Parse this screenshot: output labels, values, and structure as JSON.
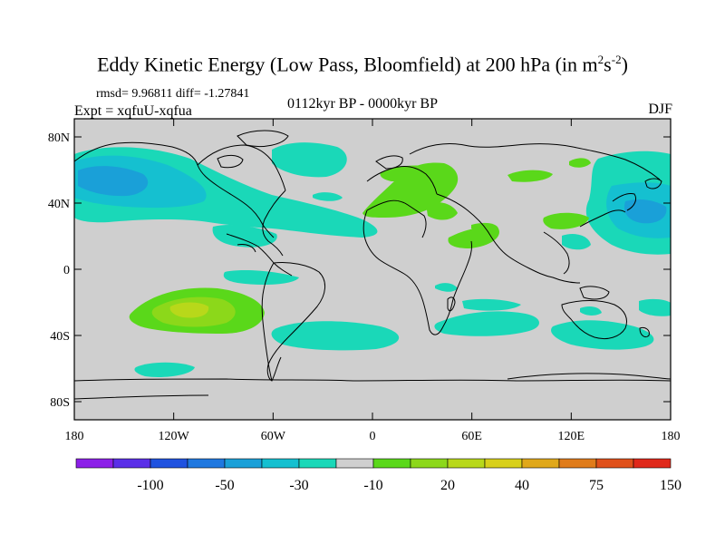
{
  "title": {
    "main": "Eddy Kinetic Energy (Low Pass, Bloomfield) at 200 hPa (in m",
    "sup1": "2",
    "mid": "s",
    "sup2": "-2",
    "end": ")"
  },
  "stats": {
    "rmsd_text": "rmsd= 9.96811  diff= -1.27841"
  },
  "experiment": "Expt = xqfuU-xqfua",
  "period": "0112kyr BP - 0000kyr BP",
  "season": "DJF",
  "axes": {
    "lat_labels": [
      "80N",
      "40N",
      "0",
      "40S",
      "80S"
    ],
    "lon_labels": [
      "180",
      "120W",
      "60W",
      "0",
      "60E",
      "120E",
      "180"
    ]
  },
  "colorbar": {
    "colors": [
      "#8c1fe8",
      "#5a2ee8",
      "#1f52e0",
      "#1f78e0",
      "#1aa0d8",
      "#15c0d0",
      "#1ad8b8",
      "#cfcfcf",
      "#5ad81a",
      "#8cd81a",
      "#b8d81a",
      "#d8d01a",
      "#e0a81a",
      "#e07c1a",
      "#e0501a",
      "#e0281a"
    ],
    "labels": [
      "-100",
      "-50",
      "-30",
      "-10",
      "20",
      "40",
      "75",
      "150"
    ]
  },
  "map": {
    "background": "#cfcfcf",
    "blue_light": "#1ad8b8",
    "blue_mid": "#15c0d0",
    "blue_dark": "#1aa0d8",
    "green": "#5ad81a",
    "green_light": "#8cd81a",
    "yellow": "#b8d81a"
  }
}
